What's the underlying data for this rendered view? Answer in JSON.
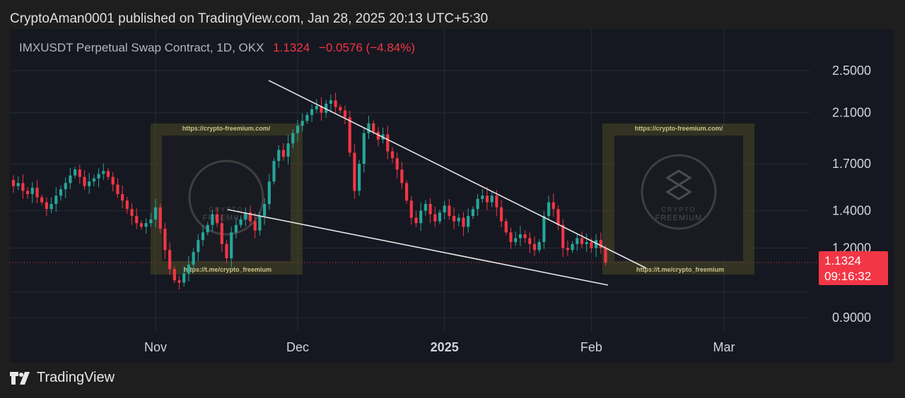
{
  "header": {
    "published_text": "CryptoAman0001 published on TradingView.com, Jan 28, 2025 20:13 UTC+5:30"
  },
  "legend": {
    "symbol_text": "IMXUSDT Perpetual Swap Contract, 1D, OKX",
    "last_price": "1.1324",
    "change": "−0.0576 (−4.84%)"
  },
  "price_tag": {
    "price": "1.1324",
    "countdown": "09:16:32"
  },
  "footer": {
    "brand": "TradingView"
  },
  "watermark": {
    "top_url": "https://crypto-freemium.com/",
    "bottom_url": "https://t.me/crypto_freemium",
    "logo_line1": "CRYPTO",
    "logo_line2": "FREEMIUM"
  },
  "colors": {
    "up": "#26a69a",
    "down": "#f23645",
    "background": "#161821",
    "grid": "#262a36",
    "trendline": "#e6e6e6",
    "watermark_frame": "#5e5a2f"
  },
  "chart_data": {
    "type": "candlestick",
    "y_scale": "log",
    "y_ticks": [
      {
        "value": 2.5,
        "label": "2.5000"
      },
      {
        "value": 2.1,
        "label": "2.1000"
      },
      {
        "value": 1.7,
        "label": "1.7000"
      },
      {
        "value": 1.4,
        "label": "1.4000"
      },
      {
        "value": 1.2,
        "label": "1.2000"
      },
      {
        "value": 0.9,
        "label": "0.9000"
      }
    ],
    "x_ticks": [
      {
        "date": "2024-11-01",
        "label": "Nov",
        "bold": false
      },
      {
        "date": "2024-12-01",
        "label": "Dec",
        "bold": false
      },
      {
        "date": "2025-01-01",
        "label": "2025",
        "bold": true
      },
      {
        "date": "2025-02-01",
        "label": "Feb",
        "bold": false
      },
      {
        "date": "2025-03-01",
        "label": "Mar",
        "bold": false
      }
    ],
    "first_candle_date": "2024-10-01",
    "closes": [
      1.59,
      1.55,
      1.57,
      1.52,
      1.5,
      1.54,
      1.48,
      1.45,
      1.41,
      1.44,
      1.49,
      1.53,
      1.57,
      1.62,
      1.66,
      1.61,
      1.55,
      1.58,
      1.6,
      1.63,
      1.65,
      1.61,
      1.56,
      1.5,
      1.46,
      1.41,
      1.37,
      1.33,
      1.31,
      1.33,
      1.35,
      1.42,
      1.3,
      1.19,
      1.1,
      1.05,
      1.04,
      1.08,
      1.12,
      1.18,
      1.24,
      1.28,
      1.32,
      1.38,
      1.33,
      1.22,
      1.15,
      1.28,
      1.32,
      1.35,
      1.39,
      1.34,
      1.29,
      1.37,
      1.44,
      1.58,
      1.72,
      1.8,
      1.75,
      1.85,
      1.93,
      1.99,
      2.03,
      2.08,
      2.13,
      2.16,
      2.1,
      2.18,
      2.21,
      2.15,
      2.12,
      2.06,
      1.78,
      1.52,
      1.7,
      1.93,
      2.01,
      1.94,
      1.88,
      1.92,
      1.79,
      1.74,
      1.66,
      1.57,
      1.46,
      1.36,
      1.33,
      1.4,
      1.44,
      1.38,
      1.34,
      1.39,
      1.43,
      1.37,
      1.34,
      1.36,
      1.31,
      1.37,
      1.41,
      1.47,
      1.49,
      1.45,
      1.49,
      1.42,
      1.34,
      1.28,
      1.23,
      1.25,
      1.27,
      1.25,
      1.22,
      1.19,
      1.23,
      1.37,
      1.45,
      1.41,
      1.32,
      1.2,
      1.19,
      1.22,
      1.25,
      1.22,
      1.23,
      1.2,
      1.24,
      1.2,
      1.13
    ]
  }
}
